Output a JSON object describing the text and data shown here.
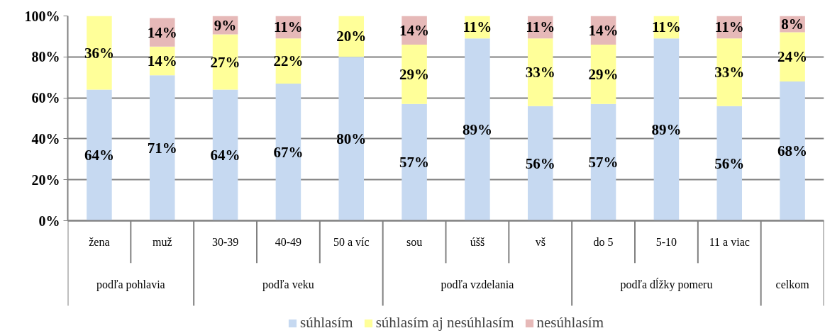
{
  "chart_data": {
    "type": "bar",
    "stacked": true,
    "categories": [
      "žena",
      "muž",
      "30-39",
      "40-49",
      "50 a víc",
      "sou",
      "úšš",
      "vš",
      "do 5",
      "5-10",
      "11 a viac",
      null
    ],
    "series": [
      {
        "name": "súhlasím",
        "color": "#c6d9f1",
        "values": [
          64,
          71,
          64,
          67,
          80,
          57,
          89,
          56,
          57,
          89,
          56,
          68
        ],
        "value_labels": [
          "64%",
          "71%",
          "64%",
          "67%",
          "80%",
          "57%",
          "89%",
          "56%",
          "57%",
          "89%",
          "56%",
          "68%"
        ]
      },
      {
        "name": "súhlasím aj nesúhlasím",
        "color": "#ffff99",
        "values": [
          36,
          14,
          27,
          22,
          20,
          29,
          11,
          33,
          29,
          11,
          33,
          24
        ],
        "value_labels": [
          "36%",
          "14%",
          "27%",
          "22%",
          "20%",
          "29%",
          "11%",
          "33%",
          "29%",
          "11%",
          "33%",
          "24%"
        ]
      },
      {
        "name": "nesúhlasím",
        "color": "#e6b9b8",
        "values": [
          null,
          14,
          9,
          11,
          null,
          14,
          null,
          11,
          14,
          null,
          11,
          8
        ],
        "value_labels": [
          null,
          "14%",
          "9%",
          "11%",
          null,
          "14%",
          null,
          "11%",
          "14%",
          null,
          "11%",
          "8%"
        ]
      }
    ],
    "ylim": [
      0,
      100
    ],
    "yticks": [
      {
        "value": 0,
        "label": "0%"
      },
      {
        "value": 20,
        "label": "20%"
      },
      {
        "value": 40,
        "label": "40%"
      },
      {
        "value": 60,
        "label": "60%"
      },
      {
        "value": 80,
        "label": "80%"
      },
      {
        "value": 100,
        "label": "100%"
      }
    ],
    "grid": "y",
    "legend": "bottom",
    "annotations": [
      "podľa pohlavia",
      "podľa veku",
      "podľa vzdelania",
      "podľa dĺžky pomeru",
      "celkom"
    ]
  }
}
